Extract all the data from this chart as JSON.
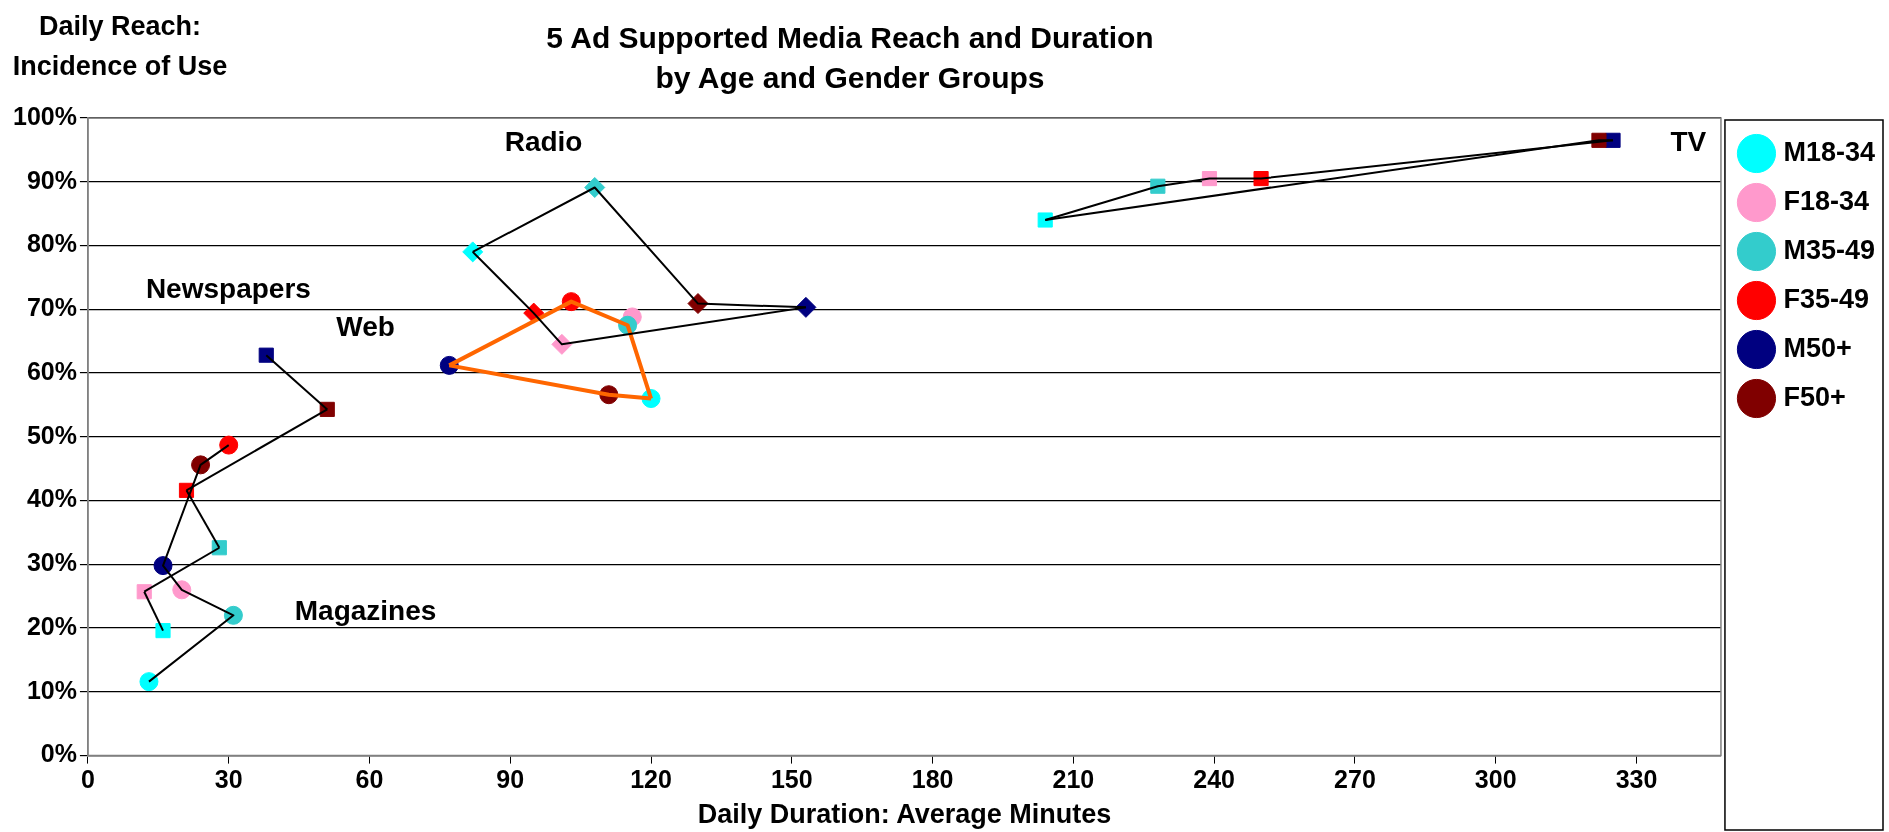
{
  "chart_data": {
    "type": "scatter",
    "title": "5 Ad Supported Media Reach and Duration by Age and Gender Groups",
    "xlabel": "Daily Duration: Average Minutes",
    "ylabel": "Daily Reach: Incidence of Use",
    "xlim": [
      0,
      348
    ],
    "xticks": [
      0,
      30,
      60,
      90,
      120,
      150,
      180,
      210,
      240,
      270,
      300,
      330
    ],
    "ylim": [
      0,
      100
    ],
    "yticks": [
      {
        "value": 0,
        "label": "0%"
      },
      {
        "value": 10,
        "label": "10%"
      },
      {
        "value": 20,
        "label": "20%"
      },
      {
        "value": 30,
        "label": "30%"
      },
      {
        "value": 40,
        "label": "40%"
      },
      {
        "value": 50,
        "label": "50%"
      },
      {
        "value": 60,
        "label": "60%"
      },
      {
        "value": 70,
        "label": "70%"
      },
      {
        "value": 80,
        "label": "80%"
      },
      {
        "value": 90,
        "label": "90%"
      },
      {
        "value": 100,
        "label": "100%"
      }
    ],
    "grid": "y",
    "legend": "right",
    "marker": "circle",
    "annotations": [
      "TV",
      "Radio",
      "Web",
      "Newspapers",
      "Magazines"
    ],
    "series": [
      {
        "name": "M18-34",
        "color": "#00ffff",
        "marker": [
          "square",
          "diamond",
          "circle",
          "square",
          "circle"
        ],
        "x": [
          204,
          82,
          120,
          16,
          13
        ],
        "values": [
          84,
          79,
          56,
          19.6,
          11.6
        ]
      },
      {
        "name": "F18-34",
        "color": "#ff99cc",
        "marker": [
          "square",
          "diamond",
          "circle",
          "square",
          "circle"
        ],
        "x": [
          239,
          101,
          116,
          12,
          20
        ],
        "values": [
          90.5,
          64.5,
          68.8,
          25.7,
          26
        ]
      },
      {
        "name": "M35-49",
        "color": "#33cccc",
        "marker": [
          "square",
          "diamond",
          "circle",
          "square",
          "circle"
        ],
        "x": [
          228,
          108,
          115,
          28,
          31
        ],
        "values": [
          89.3,
          89.1,
          67.5,
          32.6,
          22
        ]
      },
      {
        "name": "F35-49",
        "color": "#ff0000",
        "marker": [
          "square",
          "diamond",
          "circle",
          "square",
          "circle"
        ],
        "x": [
          250,
          95,
          103,
          21,
          30
        ],
        "values": [
          90.5,
          69.4,
          71.2,
          41.6,
          48.7
        ]
      },
      {
        "name": "M50+",
        "color": "#000080",
        "marker": [
          "square",
          "diamond",
          "circle",
          "square",
          "circle"
        ],
        "x": [
          325,
          153,
          77,
          38,
          16
        ],
        "values": [
          96.5,
          70.3,
          61.2,
          62.8,
          29.8
        ]
      },
      {
        "name": "F50+",
        "color": "#800000",
        "marker": [
          "square",
          "diamond",
          "circle",
          "square",
          "circle"
        ],
        "x": [
          322,
          130,
          111,
          51,
          24
        ],
        "values": [
          96.5,
          70.9,
          56.6,
          54.3,
          45.6
        ]
      },
      {
        "type": "line",
        "color": "#000000",
        "marker": "none",
        "x": [
          204,
          228,
          239,
          250,
          325
        ],
        "values": [
          84,
          89.3,
          90.5,
          90.5,
          96.5
        ]
      },
      {
        "type": "line",
        "color": "#000000",
        "marker": "none",
        "x": [
          204,
          322,
          325
        ],
        "values": [
          84,
          96.5,
          96.5
        ]
      },
      {
        "type": "line",
        "color": "#000000",
        "marker": "none",
        "x": [
          82,
          108,
          130,
          153
        ],
        "values": [
          79,
          89.1,
          70.9,
          70.3
        ]
      },
      {
        "type": "line",
        "color": "#000000",
        "marker": "none",
        "x": [
          82,
          95,
          101,
          153
        ],
        "values": [
          79,
          69.4,
          64.5,
          70.3
        ]
      },
      {
        "type": "line",
        "color": "#ff6600",
        "marker": "none",
        "x": [
          77,
          103,
          115,
          120
        ],
        "values": [
          61.2,
          71.2,
          67.5,
          56
        ]
      },
      {
        "type": "line",
        "color": "#ff6600",
        "marker": "none",
        "x": [
          77,
          111,
          120
        ],
        "values": [
          61.2,
          56.6,
          56
        ]
      },
      {
        "type": "line",
        "color": "#000000",
        "marker": "none",
        "x": [
          38,
          51
        ],
        "values": [
          62.8,
          54.3
        ]
      },
      {
        "type": "line",
        "color": "#000000",
        "marker": "none",
        "x": [
          21,
          51
        ],
        "values": [
          41.6,
          54.3
        ]
      },
      {
        "type": "line",
        "color": "#000000",
        "marker": "none",
        "x": [
          21,
          28
        ],
        "values": [
          41.6,
          32.6
        ]
      },
      {
        "type": "line",
        "color": "#000000",
        "marker": "none",
        "x": [
          12,
          28
        ],
        "values": [
          25.7,
          32.6
        ]
      },
      {
        "type": "line",
        "color": "#000000",
        "marker": "none",
        "x": [
          12,
          16
        ],
        "values": [
          25.7,
          19.6
        ]
      },
      {
        "type": "line",
        "color": "#000000",
        "marker": "none",
        "x": [
          13,
          31,
          20,
          16,
          24,
          30
        ],
        "values": [
          11.6,
          22,
          26,
          29.8,
          45.6,
          48.7
        ]
      }
    ]
  }
}
